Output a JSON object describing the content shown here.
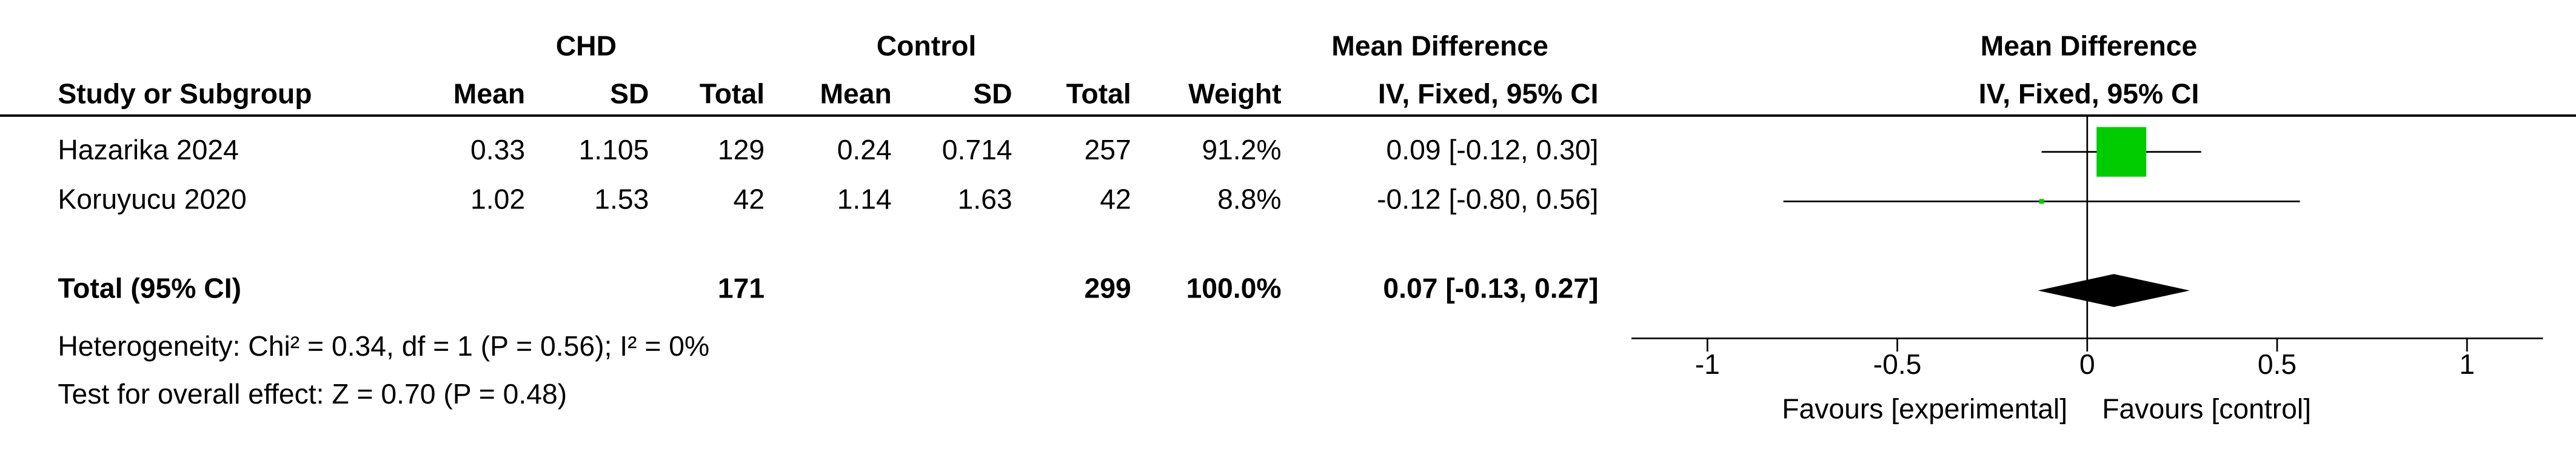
{
  "chart_data": {
    "type": "forest",
    "header": {
      "group1": "CHD",
      "group2": "Control",
      "effect": "Mean Difference",
      "effect_method": "IV, Fixed, 95% CI",
      "columns": [
        "Study or Subgroup",
        "Mean",
        "SD",
        "Total",
        "Mean",
        "SD",
        "Total",
        "Weight",
        "IV, Fixed, 95% CI"
      ],
      "plot_title": "Mean Difference",
      "plot_subtitle": "IV, Fixed, 95% CI"
    },
    "studies": [
      {
        "name": "Hazarika 2024",
        "mean1": 0.33,
        "sd1": 1.105,
        "total1": 129,
        "mean2": 0.24,
        "sd2": 0.714,
        "total2": 257,
        "weight": 91.2,
        "weight_label": "91.2%",
        "md": 0.09,
        "ci": [
          -0.12,
          0.3
        ],
        "ci_label": "0.09 [-0.12, 0.30]"
      },
      {
        "name": "Koruyucu 2020",
        "mean1": 1.02,
        "sd1": 1.53,
        "total1": 42,
        "mean2": 1.14,
        "sd2": 1.63,
        "total2": 42,
        "weight": 8.8,
        "weight_label": "8.8%",
        "md": -0.12,
        "ci": [
          -0.8,
          0.56
        ],
        "ci_label": "-0.12 [-0.80, 0.56]"
      }
    ],
    "total": {
      "name": "Total (95% CI)",
      "total1": 171,
      "total2": 299,
      "weight": 100,
      "weight_label": "100.0%",
      "md": 0.07,
      "ci": [
        -0.13,
        0.27
      ],
      "ci_label": "0.07 [-0.13, 0.27]"
    },
    "heterogeneity": "Heterogeneity: Chi² = 0.34, df = 1 (P = 0.56); I² = 0%",
    "overall_effect": "Test for overall effect: Z = 0.70 (P = 0.48)",
    "xlim": [
      -1.2,
      1.2
    ],
    "xticks": [
      -1,
      -0.5,
      0,
      0.5,
      1
    ],
    "favours_left": "Favours [experimental]",
    "favours_right": "Favours [control]",
    "study_color": "#00cc00",
    "total_color": "#000000"
  }
}
